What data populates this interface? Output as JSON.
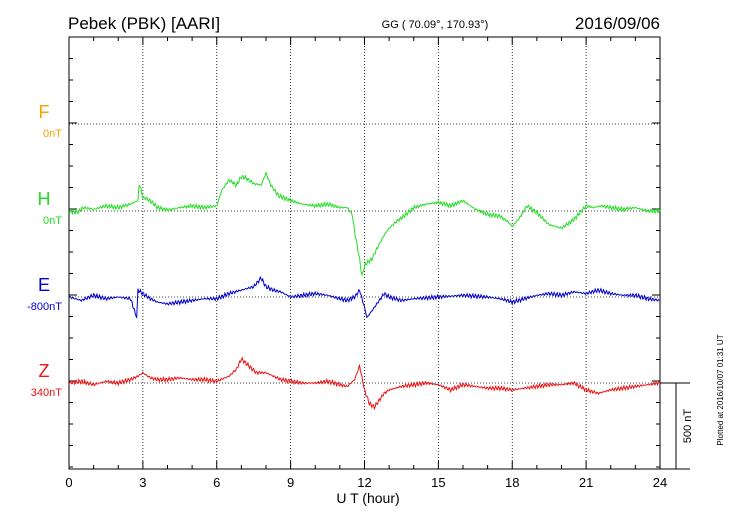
{
  "header": {
    "station": "Pebek (PBK)  [AARI]",
    "coords": "GG ( 70.09°, 170.93°)",
    "date": "2016/09/06"
  },
  "footer": {
    "plotted": "Plotted at 2016/10/07 01:31  UT"
  },
  "scale_bar": {
    "label": "500 nT",
    "value_nT": 500
  },
  "chart_data": {
    "type": "line",
    "xlabel": "U T (hour)",
    "xlim": [
      0,
      24
    ],
    "xticks": [
      0,
      3,
      6,
      9,
      12,
      15,
      18,
      21,
      24
    ],
    "ylabel": "",
    "grid": true,
    "series": [
      {
        "name": "F",
        "baseline_label": "0nT",
        "color": "#f5a500",
        "x": [],
        "y": []
      },
      {
        "name": "H",
        "baseline_label": "0nT",
        "color": "#22dd22",
        "x": [
          0,
          0.3,
          0.6,
          1.0,
          1.5,
          2.0,
          2.5,
          2.8,
          2.85,
          3.0,
          3.3,
          3.6,
          4.0,
          4.5,
          5.0,
          5.5,
          6.0,
          6.2,
          6.5,
          6.8,
          7.0,
          7.2,
          7.5,
          7.8,
          8.0,
          8.2,
          8.5,
          9.0,
          9.5,
          10.0,
          10.5,
          11.0,
          11.3,
          11.5,
          11.6,
          11.8,
          11.9,
          12.0,
          12.1,
          12.3,
          12.5,
          12.8,
          13.0,
          13.3,
          13.6,
          14.0,
          14.5,
          15.0,
          15.5,
          16.0,
          16.5,
          17.0,
          17.5,
          17.8,
          18.0,
          18.3,
          18.6,
          19.0,
          19.5,
          20.0,
          20.5,
          21.0,
          21.3,
          21.6,
          22.0,
          22.5,
          23.0,
          23.5,
          24.0
        ],
        "y": [
          0,
          -10,
          20,
          10,
          30,
          20,
          40,
          60,
          160,
          80,
          60,
          20,
          5,
          20,
          30,
          20,
          30,
          120,
          180,
          150,
          200,
          190,
          160,
          150,
          220,
          150,
          90,
          60,
          40,
          30,
          40,
          20,
          20,
          -20,
          -120,
          -280,
          -380,
          -320,
          -300,
          -280,
          -220,
          -140,
          -100,
          -60,
          -30,
          20,
          40,
          50,
          30,
          60,
          10,
          -20,
          -30,
          -60,
          -90,
          -40,
          30,
          -10,
          -80,
          -100,
          -50,
          30,
          20,
          30,
          20,
          10,
          20,
          0,
          0
        ]
      },
      {
        "name": "E",
        "baseline_label": "-800nT",
        "color": "#0000cc",
        "x": [
          0,
          0.5,
          1.0,
          1.5,
          2.0,
          2.5,
          2.75,
          2.8,
          3.0,
          3.3,
          3.6,
          4.0,
          4.5,
          5.0,
          5.5,
          6.0,
          6.5,
          7.0,
          7.5,
          7.8,
          8.0,
          8.3,
          8.6,
          9.0,
          9.5,
          10.0,
          10.5,
          11.0,
          11.3,
          11.6,
          11.8,
          12.0,
          12.1,
          12.3,
          12.5,
          12.8,
          13.0,
          13.5,
          14.0,
          15.0,
          16.0,
          17.0,
          17.5,
          17.8,
          18.0,
          18.5,
          19.0,
          19.5,
          20.0,
          20.5,
          21.0,
          21.5,
          22.0,
          22.5,
          23.0,
          23.5,
          24.0
        ],
        "y": [
          0,
          -20,
          10,
          -10,
          0,
          -10,
          -120,
          40,
          20,
          -10,
          -30,
          -40,
          -30,
          -20,
          -10,
          -10,
          20,
          40,
          60,
          110,
          60,
          40,
          30,
          0,
          10,
          20,
          10,
          -10,
          -20,
          0,
          40,
          -60,
          -120,
          -80,
          -40,
          20,
          0,
          -20,
          -10,
          0,
          10,
          0,
          -10,
          -20,
          -30,
          -10,
          10,
          20,
          10,
          30,
          20,
          40,
          20,
          10,
          10,
          -10,
          -20
        ]
      },
      {
        "name": "Z",
        "baseline_label": "340nT",
        "color": "#ee1111",
        "x": [
          0,
          0.5,
          1.0,
          1.5,
          2.0,
          2.5,
          2.8,
          3.0,
          3.3,
          3.6,
          4.0,
          4.5,
          5.0,
          5.5,
          6.0,
          6.5,
          6.8,
          7.0,
          7.3,
          7.6,
          8.0,
          8.3,
          8.6,
          9.0,
          9.5,
          10.0,
          10.5,
          11.0,
          11.3,
          11.6,
          11.8,
          12.0,
          12.2,
          12.4,
          12.6,
          12.8,
          13.0,
          13.5,
          14.0,
          14.5,
          15.0,
          15.5,
          16.0,
          16.5,
          17.0,
          17.5,
          18.0,
          18.5,
          19.0,
          19.5,
          20.0,
          20.5,
          21.0,
          21.5,
          22.0,
          22.5,
          23.0,
          23.5,
          24.0
        ],
        "y": [
          0,
          10,
          -10,
          10,
          0,
          20,
          40,
          60,
          30,
          20,
          20,
          30,
          20,
          20,
          10,
          40,
          80,
          140,
          100,
          60,
          60,
          40,
          20,
          10,
          0,
          0,
          10,
          -10,
          -20,
          20,
          100,
          -40,
          -120,
          -140,
          -100,
          -60,
          -40,
          -20,
          -10,
          0,
          -10,
          -40,
          -10,
          -20,
          -30,
          -30,
          -40,
          -30,
          -20,
          -10,
          -10,
          0,
          -40,
          -60,
          -40,
          -30,
          -20,
          -10,
          0
        ]
      }
    ]
  }
}
